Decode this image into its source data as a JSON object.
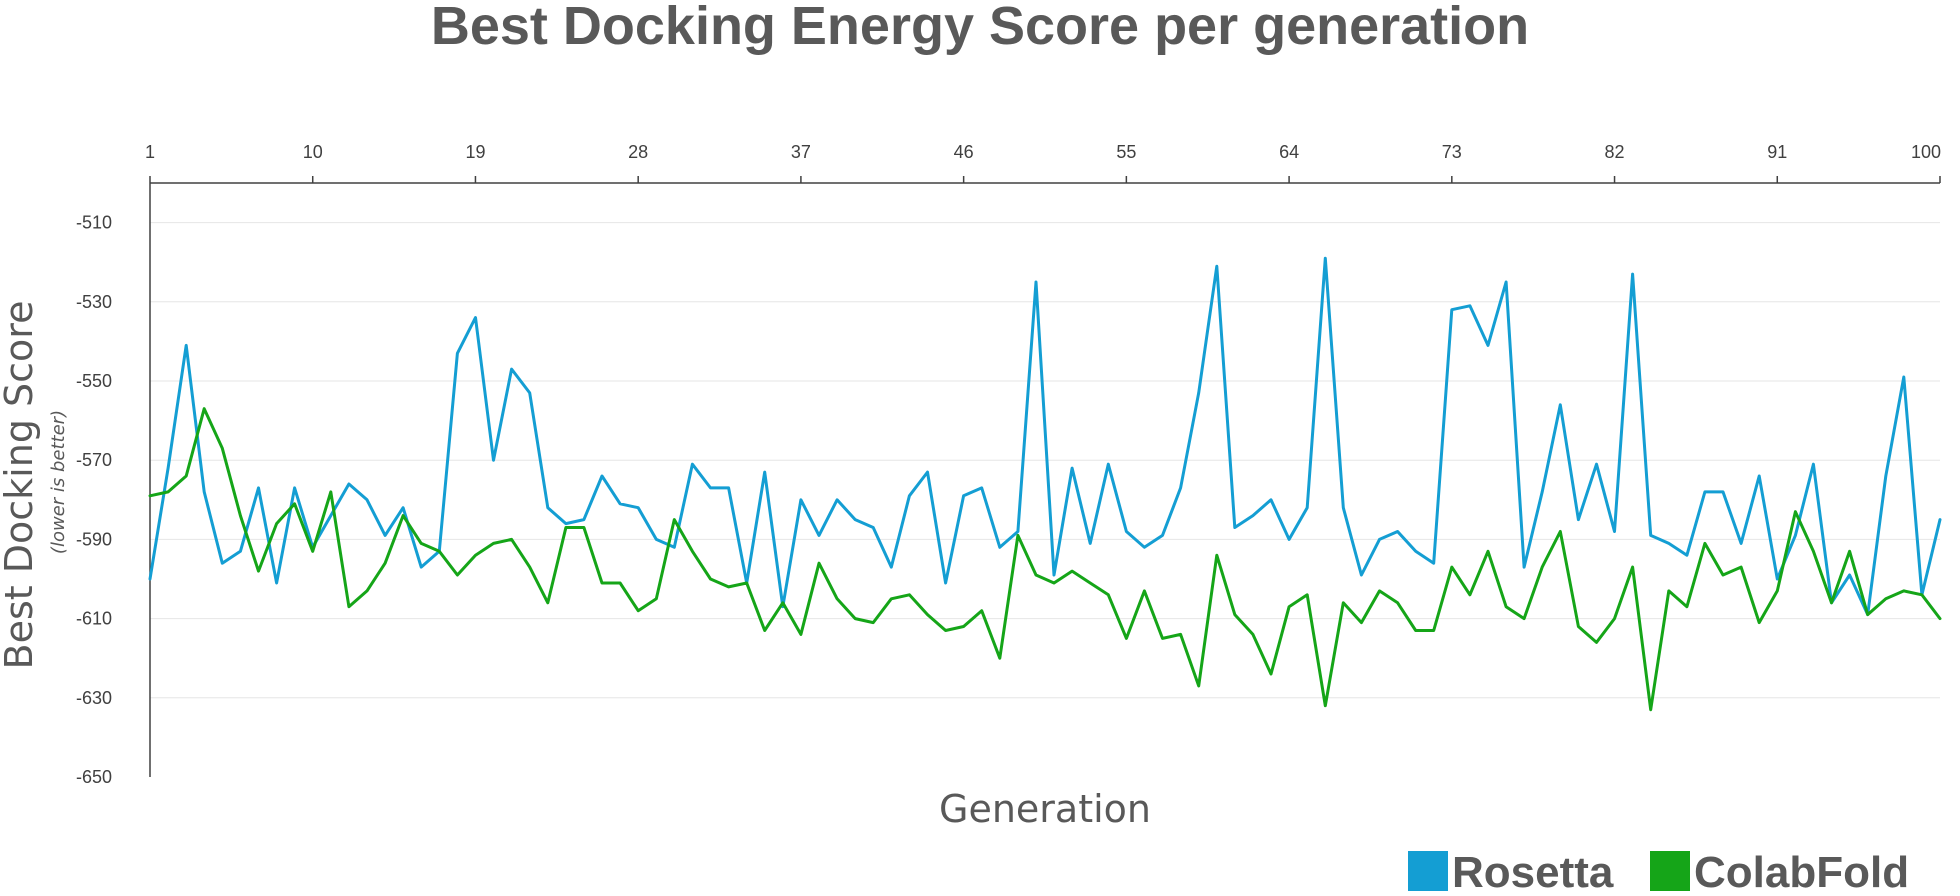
{
  "chart_data": {
    "type": "line",
    "title": "Best Docking Energy Score per generation",
    "xlabel": "Generation",
    "ylabel": "Best Docking Score",
    "ylabel_note": "(lower is better)",
    "x_tick_labels": [
      "1",
      "10",
      "19",
      "28",
      "37",
      "46",
      "55",
      "64",
      "73",
      "82",
      "91",
      "100"
    ],
    "y_tick_labels": [
      "-510",
      "-530",
      "-550",
      "-570",
      "-590",
      "-610",
      "-630",
      "-650"
    ],
    "xlim": [
      1,
      100
    ],
    "ylim": [
      -650,
      -500
    ],
    "x_axis_position": "top",
    "grid": "horizontal",
    "legend_position": "bottom-right",
    "series": [
      {
        "name": "Rosetta",
        "color": "#149ED3",
        "values": [
          -600,
          -572,
          -541,
          -578,
          -596,
          -593,
          -577,
          -601,
          -577,
          -592,
          -584,
          -576,
          -580,
          -589,
          -582,
          -597,
          -593,
          -543,
          -534,
          -570,
          -547,
          -553,
          -582,
          -586,
          -585,
          -574,
          -581,
          -582,
          -590,
          -592,
          -571,
          -577,
          -577,
          -601,
          -573,
          -607,
          -580,
          -589,
          -580,
          -585,
          -587,
          -597,
          -579,
          -573,
          -601,
          -579,
          -577,
          -592,
          -588,
          -525,
          -599,
          -572,
          -591,
          -571,
          -588,
          -592,
          -589,
          -577,
          -553,
          -521,
          -587,
          -584,
          -580,
          -590,
          -582,
          -519,
          -582,
          -599,
          -590,
          -588,
          -593,
          -596,
          -532,
          -531,
          -541,
          -525,
          -597,
          -578,
          -556,
          -585,
          -571,
          -588,
          -523,
          -589,
          -591,
          -594,
          -578,
          -578,
          -591,
          -574,
          -600,
          -589,
          -571,
          -606,
          -599,
          -609,
          -574,
          -549,
          -604,
          -585
        ]
      },
      {
        "name": "ColabFold",
        "color": "#15A518",
        "values": [
          -579,
          -578,
          -574,
          -557,
          -567,
          -584,
          -598,
          -586,
          -581,
          -593,
          -578,
          -607,
          -603,
          -596,
          -584,
          -591,
          -593,
          -599,
          -594,
          -591,
          -590,
          -597,
          -606,
          -587,
          -587,
          -601,
          -601,
          -608,
          -605,
          -585,
          -593,
          -600,
          -602,
          -601,
          -613,
          -606,
          -614,
          -596,
          -605,
          -610,
          -611,
          -605,
          -604,
          -609,
          -613,
          -612,
          -608,
          -620,
          -589,
          -599,
          -601,
          -598,
          -601,
          -604,
          -615,
          -603,
          -615,
          -614,
          -627,
          -594,
          -609,
          -614,
          -624,
          -607,
          -604,
          -632,
          -606,
          -611,
          -603,
          -606,
          -613,
          -613,
          -597,
          -604,
          -593,
          -607,
          -610,
          -597,
          -588,
          -612,
          -616,
          -610,
          -597,
          -633,
          -603,
          -607,
          -591,
          -599,
          -597,
          -611,
          -603,
          -583,
          -593,
          -606,
          -593,
          -609,
          -605,
          -603,
          -604,
          -610
        ]
      }
    ]
  }
}
